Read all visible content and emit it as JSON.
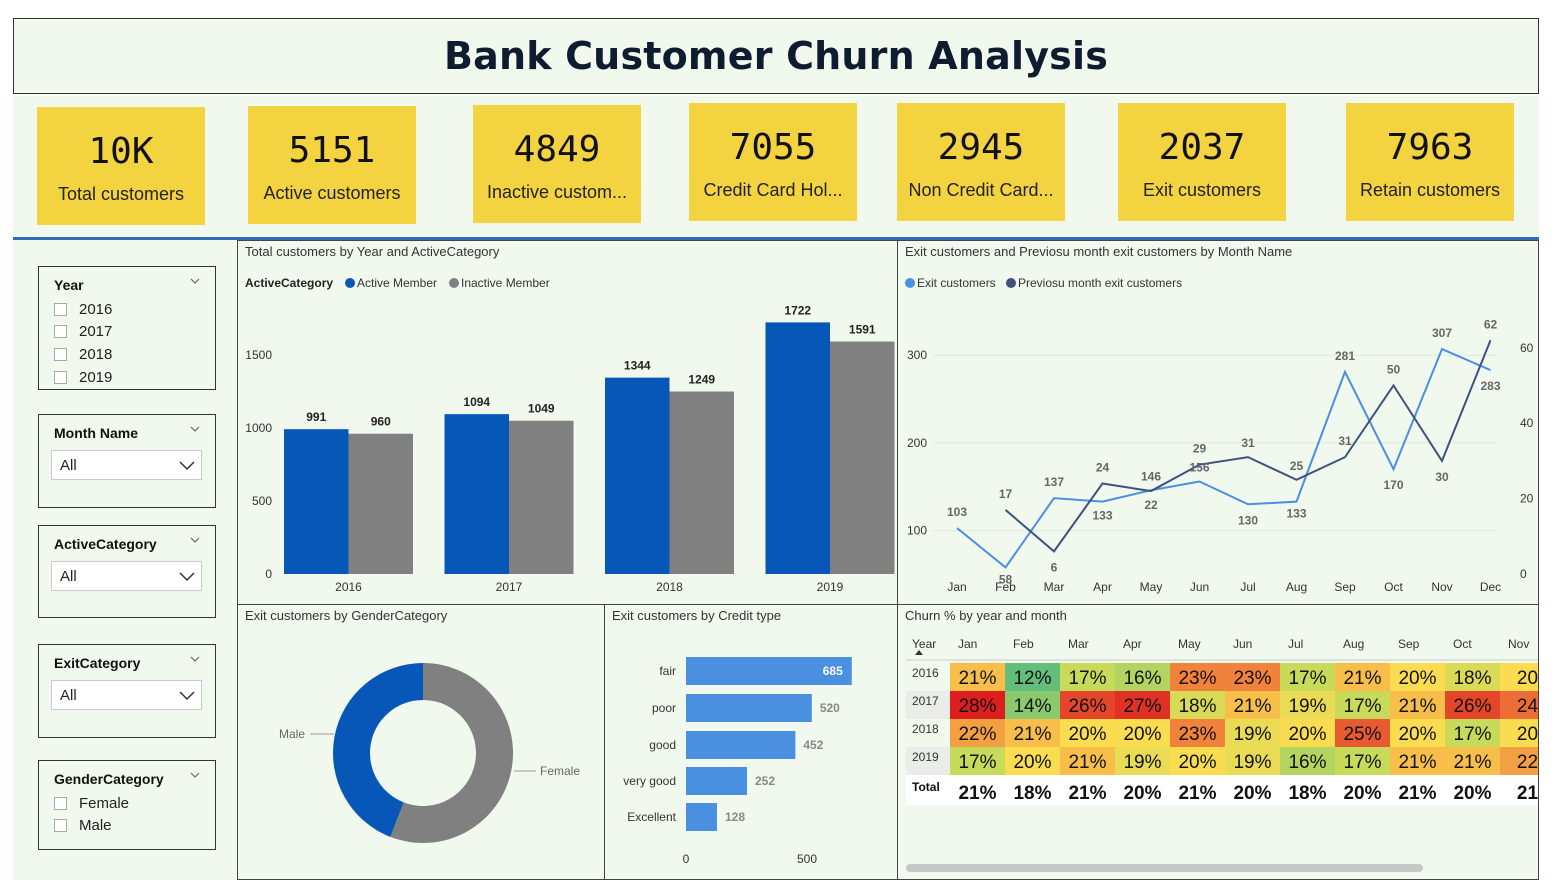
{
  "title": "Bank Customer Churn Analysis",
  "colors": {
    "accent_kpi": "#f4d341",
    "active": "#0657b8",
    "inactive": "#808080",
    "exit_line": "#4a8fe0",
    "prev_line": "#3f527d",
    "bar_blue": "#4a8fe0",
    "panel_bg": "#f1f8ee"
  },
  "kpis": [
    {
      "value": "10K",
      "label": "Total customers"
    },
    {
      "value": "5151",
      "label": "Active customers"
    },
    {
      "value": "4849",
      "label": "Inactive custom..."
    },
    {
      "value": "7055",
      "label": "Credit Card Hol..."
    },
    {
      "value": "2945",
      "label": "Non Credit Card..."
    },
    {
      "value": "2037",
      "label": "Exit customers"
    },
    {
      "value": "7963",
      "label": "Retain customers"
    }
  ],
  "slicers": {
    "year": {
      "title": "Year",
      "options": [
        "2016",
        "2017",
        "2018",
        "2019"
      ],
      "icon": "chevron-down-icon"
    },
    "month": {
      "title": "Month Name",
      "value": "All"
    },
    "active": {
      "title": "ActiveCategory",
      "value": "All"
    },
    "exit": {
      "title": "ExitCategory",
      "value": "All"
    },
    "gender": {
      "title": "GenderCategory",
      "options": [
        "Female",
        "Male"
      ]
    }
  },
  "visuals": {
    "bar_title": "Total customers by Year and ActiveCategory",
    "bar_legend_title": "ActiveCategory",
    "line_title": "Exit customers and Previosu month exit customers by Month Name",
    "donut_title": "Exit customers by GenderCategory",
    "hbar_title": "Exit customers by Credit type",
    "matrix_title": "Churn % by year and month"
  },
  "chart_data": [
    {
      "type": "bar",
      "title": "Total customers by Year and ActiveCategory",
      "categories": [
        "2016",
        "2017",
        "2018",
        "2019"
      ],
      "series": [
        {
          "name": "Active Member",
          "values": [
            991,
            1094,
            1344,
            1722
          ]
        },
        {
          "name": "Inactive Member",
          "values": [
            960,
            1049,
            1249,
            1591
          ]
        }
      ],
      "yticks": [
        "0",
        "500",
        "1000",
        "1500"
      ],
      "ylim": [
        0,
        1800
      ]
    },
    {
      "type": "line",
      "title": "Exit customers and Previosu month exit customers by Month Name",
      "categories": [
        "Jan",
        "Feb",
        "Mar",
        "Apr",
        "May",
        "Jun",
        "Jul",
        "Aug",
        "Sep",
        "Oct",
        "Nov",
        "Dec"
      ],
      "series": [
        {
          "name": "Exit customers",
          "axis": "left",
          "values": [
            103,
            58,
            137,
            133,
            146,
            156,
            130,
            133,
            281,
            170,
            307,
            283
          ],
          "labels": [
            "103",
            "58",
            "137",
            "133",
            "146",
            "156",
            "130",
            "133",
            "281",
            "170",
            "307",
            "283"
          ]
        },
        {
          "name": "Previosu month exit customers",
          "axis": "right",
          "values": [
            null,
            17,
            6,
            24,
            22,
            29,
            31,
            25,
            31,
            50,
            30,
            62
          ],
          "labels": [
            "",
            "17",
            "6",
            "24",
            "22",
            "29",
            "31",
            "25",
            "31",
            "50",
            "30",
            "62"
          ]
        }
      ],
      "yticks_left": [
        "100",
        "200",
        "300"
      ],
      "ylim_left": [
        30,
        340
      ],
      "yticks_right": [
        "0",
        "20",
        "40",
        "60"
      ],
      "ylim_right": [
        0,
        65
      ]
    },
    {
      "type": "pie",
      "title": "Exit customers by GenderCategory",
      "categories": [
        "Female",
        "Male"
      ],
      "values": [
        1139,
        898
      ]
    },
    {
      "type": "bar",
      "orientation": "horizontal",
      "title": "Exit customers by Credit type",
      "categories": [
        "fair",
        "poor",
        "good",
        "very good",
        "Excellent"
      ],
      "values": [
        685,
        520,
        452,
        252,
        128
      ],
      "xticks": [
        "0",
        "500"
      ],
      "xlim": [
        0,
        700
      ]
    },
    {
      "type": "heatmap",
      "title": "Churn % by year and month",
      "row_header": "Year",
      "columns": [
        "Jan",
        "Feb",
        "Mar",
        "Apr",
        "May",
        "Jun",
        "Jul",
        "Aug",
        "Sep",
        "Oct",
        "Nov"
      ],
      "rows": [
        {
          "label": "2016",
          "values": [
            "21%",
            "12%",
            "17%",
            "16%",
            "23%",
            "23%",
            "17%",
            "21%",
            "20%",
            "18%",
            "20"
          ]
        },
        {
          "label": "2017",
          "values": [
            "28%",
            "14%",
            "26%",
            "27%",
            "18%",
            "21%",
            "19%",
            "17%",
            "21%",
            "26%",
            "24"
          ]
        },
        {
          "label": "2018",
          "values": [
            "22%",
            "21%",
            "20%",
            "20%",
            "23%",
            "19%",
            "20%",
            "25%",
            "20%",
            "17%",
            "20"
          ]
        },
        {
          "label": "2019",
          "values": [
            "17%",
            "20%",
            "21%",
            "19%",
            "20%",
            "19%",
            "16%",
            "17%",
            "21%",
            "21%",
            "22"
          ]
        }
      ],
      "total": {
        "label": "Total",
        "values": [
          "21%",
          "18%",
          "21%",
          "20%",
          "21%",
          "20%",
          "18%",
          "20%",
          "21%",
          "20%",
          "21"
        ]
      }
    }
  ]
}
